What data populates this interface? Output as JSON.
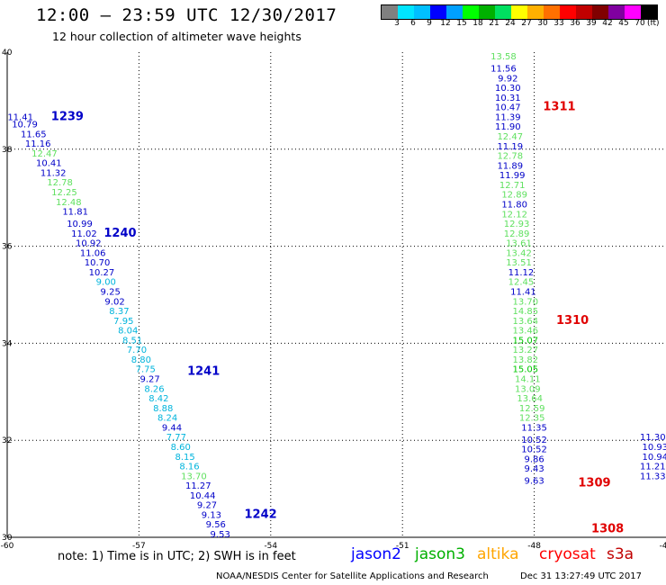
{
  "header": {
    "title": "12:00 — 23:59 UTC 12/30/2017",
    "subtitle": "12 hour collection of altimeter wave heights"
  },
  "legend": {
    "colors": [
      "#808080",
      "#00e5ff",
      "#00bfff",
      "#0000ff",
      "#00a0ff",
      "#00ff00",
      "#00b000",
      "#00e060",
      "#ffff00",
      "#ffb000",
      "#ff7000",
      "#ff0000",
      "#c00000",
      "#800000",
      "#8000a0",
      "#ff00ff",
      "#000000"
    ],
    "labels": [
      "3",
      "6",
      "9",
      "12",
      "15",
      "18",
      "21",
      "24",
      "27",
      "30",
      "33",
      "36",
      "39",
      "42",
      "45",
      "70"
    ],
    "unit": "(ft)"
  },
  "chart_data": {
    "type": "scatter",
    "title": "12:00 — 23:59 UTC 12/30/2017",
    "xlim": [
      -60,
      -45
    ],
    "ylim": [
      30,
      40
    ],
    "x_ticks": [
      "-60",
      "-57",
      "-54",
      "-51",
      "-48",
      "-45"
    ],
    "y_ticks": [
      "30",
      "32",
      "34",
      "36",
      "38",
      "40"
    ],
    "grid": true,
    "colors": {
      "jason2": "#0000c8",
      "jason3": "#00c800",
      "jason3_light": "#5fe05f",
      "altika": "#ff8c00",
      "cryosat": "#ff0000",
      "s3a": "#c80000",
      "cyan": "#00b4dc"
    },
    "tracks": [
      {
        "label": "1239",
        "label_pos": [
          -59.0,
          38.6
        ],
        "points": [
          {
            "x": -59.7,
            "y": 38.6,
            "v": "11.41",
            "c": "jason2"
          },
          {
            "x": -59.6,
            "y": 38.45,
            "v": "10.79",
            "c": "jason2"
          },
          {
            "x": -59.4,
            "y": 38.25,
            "v": "11.65",
            "c": "jason2"
          },
          {
            "x": -59.3,
            "y": 38.05,
            "v": "11.16",
            "c": "jason2"
          },
          {
            "x": -59.15,
            "y": 37.85,
            "v": "12.47",
            "c": "jason3_light"
          },
          {
            "x": -59.05,
            "y": 37.65,
            "v": "10.41",
            "c": "jason2"
          },
          {
            "x": -58.95,
            "y": 37.45,
            "v": "11.32",
            "c": "jason2"
          },
          {
            "x": -58.8,
            "y": 37.25,
            "v": "12.78",
            "c": "jason3_light"
          },
          {
            "x": -58.7,
            "y": 37.05,
            "v": "12.25",
            "c": "jason3_light"
          },
          {
            "x": -58.6,
            "y": 36.85,
            "v": "12.48",
            "c": "jason3_light"
          },
          {
            "x": -58.45,
            "y": 36.65,
            "v": "11.81",
            "c": "jason2"
          }
        ]
      },
      {
        "label": "1240",
        "label_pos": [
          -57.8,
          36.2
        ],
        "points": [
          {
            "x": -58.35,
            "y": 36.4,
            "v": "10.99",
            "c": "jason2"
          },
          {
            "x": -58.25,
            "y": 36.2,
            "v": "11.02",
            "c": "jason2"
          },
          {
            "x": -58.15,
            "y": 36.0,
            "v": "10.92",
            "c": "jason2"
          },
          {
            "x": -58.05,
            "y": 35.8,
            "v": "11.06",
            "c": "jason2"
          },
          {
            "x": -57.95,
            "y": 35.6,
            "v": "10.70",
            "c": "jason2"
          },
          {
            "x": -57.85,
            "y": 35.4,
            "v": "10.27",
            "c": "jason2"
          },
          {
            "x": -57.75,
            "y": 35.2,
            "v": "9.00",
            "c": "cyan"
          },
          {
            "x": -57.65,
            "y": 35.0,
            "v": "9.25",
            "c": "jason2"
          },
          {
            "x": -57.55,
            "y": 34.8,
            "v": "9.02",
            "c": "jason2"
          },
          {
            "x": -57.45,
            "y": 34.6,
            "v": "8.37",
            "c": "cyan"
          },
          {
            "x": -57.35,
            "y": 34.4,
            "v": "7.95",
            "c": "cyan"
          },
          {
            "x": -57.25,
            "y": 34.2,
            "v": "8.04",
            "c": "cyan"
          },
          {
            "x": -57.15,
            "y": 34.0,
            "v": "8.51",
            "c": "cyan"
          },
          {
            "x": -57.05,
            "y": 33.8,
            "v": "7.70",
            "c": "cyan"
          },
          {
            "x": -56.95,
            "y": 33.6,
            "v": "8.80",
            "c": "cyan"
          },
          {
            "x": -56.85,
            "y": 33.4,
            "v": "7.75",
            "c": "cyan"
          }
        ]
      },
      {
        "label": "1241",
        "label_pos": [
          -55.9,
          33.35
        ],
        "points": [
          {
            "x": -56.75,
            "y": 33.2,
            "v": "9.27",
            "c": "jason2"
          },
          {
            "x": -56.65,
            "y": 33.0,
            "v": "8.26",
            "c": "cyan"
          },
          {
            "x": -56.55,
            "y": 32.8,
            "v": "8.42",
            "c": "cyan"
          },
          {
            "x": -56.45,
            "y": 32.6,
            "v": "8.88",
            "c": "cyan"
          },
          {
            "x": -56.35,
            "y": 32.4,
            "v": "8.24",
            "c": "cyan"
          },
          {
            "x": -56.25,
            "y": 32.2,
            "v": "9.44",
            "c": "jason2"
          },
          {
            "x": -56.15,
            "y": 32.0,
            "v": "7.77",
            "c": "cyan"
          },
          {
            "x": -56.05,
            "y": 31.8,
            "v": "8.60",
            "c": "cyan"
          },
          {
            "x": -55.95,
            "y": 31.6,
            "v": "8.15",
            "c": "cyan"
          },
          {
            "x": -55.85,
            "y": 31.4,
            "v": "8.16",
            "c": "cyan"
          },
          {
            "x": -55.75,
            "y": 31.2,
            "v": "13.70",
            "c": "jason3_light"
          },
          {
            "x": -55.65,
            "y": 31.0,
            "v": "11.27",
            "c": "jason2"
          },
          {
            "x": -55.55,
            "y": 30.8,
            "v": "10.44",
            "c": "jason2"
          },
          {
            "x": -55.45,
            "y": 30.6,
            "v": "9.27",
            "c": "jason2"
          },
          {
            "x": -55.35,
            "y": 30.4,
            "v": "9.13",
            "c": "jason2"
          },
          {
            "x": -55.25,
            "y": 30.2,
            "v": "9.56",
            "c": "jason2"
          },
          {
            "x": -55.15,
            "y": 30.0,
            "v": "9.53",
            "c": "jason2"
          }
        ]
      },
      {
        "label": "1242",
        "label_pos": [
          -54.6,
          30.4
        ],
        "points": []
      },
      {
        "label": "1311",
        "label_pos": [
          -47.8,
          38.8
        ],
        "points": [
          {
            "x": -48.7,
            "y": 39.85,
            "v": "13.58",
            "c": "jason3_light"
          },
          {
            "x": -48.7,
            "y": 39.6,
            "v": "11.56",
            "c": "jason2"
          },
          {
            "x": -48.6,
            "y": 39.4,
            "v": "9.92",
            "c": "jason2"
          },
          {
            "x": -48.6,
            "y": 39.2,
            "v": "10.30",
            "c": "jason2"
          },
          {
            "x": -48.6,
            "y": 39.0,
            "v": "10.31",
            "c": "jason2"
          },
          {
            "x": -48.6,
            "y": 38.8,
            "v": "10.47",
            "c": "jason2"
          },
          {
            "x": -48.6,
            "y": 38.6,
            "v": "11.39",
            "c": "jason2"
          },
          {
            "x": -48.6,
            "y": 38.4,
            "v": "11.90",
            "c": "jason2"
          },
          {
            "x": -48.55,
            "y": 38.2,
            "v": "12.47",
            "c": "jason3_light"
          },
          {
            "x": -48.55,
            "y": 38.0,
            "v": "11.19",
            "c": "jason2"
          },
          {
            "x": -48.55,
            "y": 37.8,
            "v": "12.78",
            "c": "jason3_light"
          },
          {
            "x": -48.55,
            "y": 37.6,
            "v": "11.89",
            "c": "jason2"
          },
          {
            "x": -48.5,
            "y": 37.4,
            "v": "11.99",
            "c": "jason2"
          },
          {
            "x": -48.5,
            "y": 37.2,
            "v": "12.71",
            "c": "jason3_light"
          },
          {
            "x": -48.45,
            "y": 37.0,
            "v": "12.89",
            "c": "jason3_light"
          },
          {
            "x": -48.45,
            "y": 36.8,
            "v": "11.80",
            "c": "jason2"
          }
        ]
      },
      {
        "label": "1310",
        "label_pos": [
          -47.5,
          34.4
        ],
        "points": [
          {
            "x": -48.45,
            "y": 36.6,
            "v": "12.12",
            "c": "jason3_light"
          },
          {
            "x": -48.4,
            "y": 36.4,
            "v": "12.93",
            "c": "jason3_light"
          },
          {
            "x": -48.4,
            "y": 36.2,
            "v": "12.89",
            "c": "jason3_light"
          },
          {
            "x": -48.35,
            "y": 36.0,
            "v": "13.61",
            "c": "jason3_light"
          },
          {
            "x": -48.35,
            "y": 35.8,
            "v": "13.42",
            "c": "jason3_light"
          },
          {
            "x": -48.35,
            "y": 35.6,
            "v": "13.51",
            "c": "jason3_light"
          },
          {
            "x": -48.3,
            "y": 35.4,
            "v": "11.12",
            "c": "jason2"
          },
          {
            "x": -48.3,
            "y": 35.2,
            "v": "12.45",
            "c": "jason3_light"
          },
          {
            "x": -48.25,
            "y": 35.0,
            "v": "11.41",
            "c": "jason2"
          },
          {
            "x": -48.2,
            "y": 34.8,
            "v": "13.70",
            "c": "jason3_light"
          },
          {
            "x": -48.2,
            "y": 34.6,
            "v": "14.85",
            "c": "jason3_light"
          },
          {
            "x": -48.2,
            "y": 34.4,
            "v": "13.64",
            "c": "jason3_light"
          },
          {
            "x": -48.2,
            "y": 34.2,
            "v": "13.46",
            "c": "jason3_light"
          },
          {
            "x": -48.2,
            "y": 34.0,
            "v": "15.07",
            "c": "jason3"
          },
          {
            "x": -48.2,
            "y": 33.8,
            "v": "13.27",
            "c": "jason3_light"
          },
          {
            "x": -48.2,
            "y": 33.6,
            "v": "13.82",
            "c": "jason3_light"
          },
          {
            "x": -48.2,
            "y": 33.4,
            "v": "15.05",
            "c": "jason3"
          },
          {
            "x": -48.15,
            "y": 33.2,
            "v": "14.11",
            "c": "jason3_light"
          },
          {
            "x": -48.15,
            "y": 33.0,
            "v": "13.09",
            "c": "jason3_light"
          },
          {
            "x": -48.1,
            "y": 32.8,
            "v": "13.64",
            "c": "jason3_light"
          },
          {
            "x": -48.05,
            "y": 32.6,
            "v": "12.59",
            "c": "jason3_light"
          },
          {
            "x": -48.05,
            "y": 32.4,
            "v": "12.35",
            "c": "jason3_light"
          }
        ]
      },
      {
        "label": "1309",
        "label_pos": [
          -47.0,
          31.05
        ],
        "points": [
          {
            "x": -48.0,
            "y": 32.2,
            "v": "11.35",
            "c": "jason2"
          },
          {
            "x": -48.0,
            "y": 31.95,
            "v": "10.52",
            "c": "jason2"
          },
          {
            "x": -48.0,
            "y": 31.75,
            "v": "10.52",
            "c": "jason2"
          },
          {
            "x": -48.0,
            "y": 31.55,
            "v": "9.86",
            "c": "jason2"
          },
          {
            "x": -48.0,
            "y": 31.35,
            "v": "9.43",
            "c": "jason2"
          },
          {
            "x": -48.0,
            "y": 31.1,
            "v": "9.63",
            "c": "jason2"
          }
        ]
      },
      {
        "label": "1308",
        "label_pos": [
          -46.7,
          30.1
        ],
        "points": []
      },
      {
        "label": "",
        "label_pos": [
          -45,
          30
        ],
        "points": [
          {
            "x": -45.3,
            "y": 32.0,
            "v": "11.30",
            "c": "jason2"
          },
          {
            "x": -45.25,
            "y": 31.8,
            "v": "10.93",
            "c": "jason2"
          },
          {
            "x": -45.25,
            "y": 31.6,
            "v": "10.94",
            "c": "jason2"
          },
          {
            "x": -45.3,
            "y": 31.4,
            "v": "11.21",
            "c": "jason2"
          },
          {
            "x": -45.3,
            "y": 31.2,
            "v": "11.33",
            "c": "jason2"
          }
        ]
      }
    ]
  },
  "note": "note: 1) Time is in UTC; 2) SWH is in feet",
  "satellites": [
    {
      "name": "jason2",
      "color": "#0000ff"
    },
    {
      "name": "jason3",
      "color": "#00b000"
    },
    {
      "name": "altika",
      "color": "#ffa500"
    },
    {
      "name": "cryosat",
      "color": "#ff0000"
    },
    {
      "name": "s3a",
      "color": "#c00000"
    }
  ],
  "footer": {
    "left": "NOAA/NESDIS Center for Satellite Applications and Research",
    "right": "Dec 31 13:27:49 UTC 2017"
  }
}
